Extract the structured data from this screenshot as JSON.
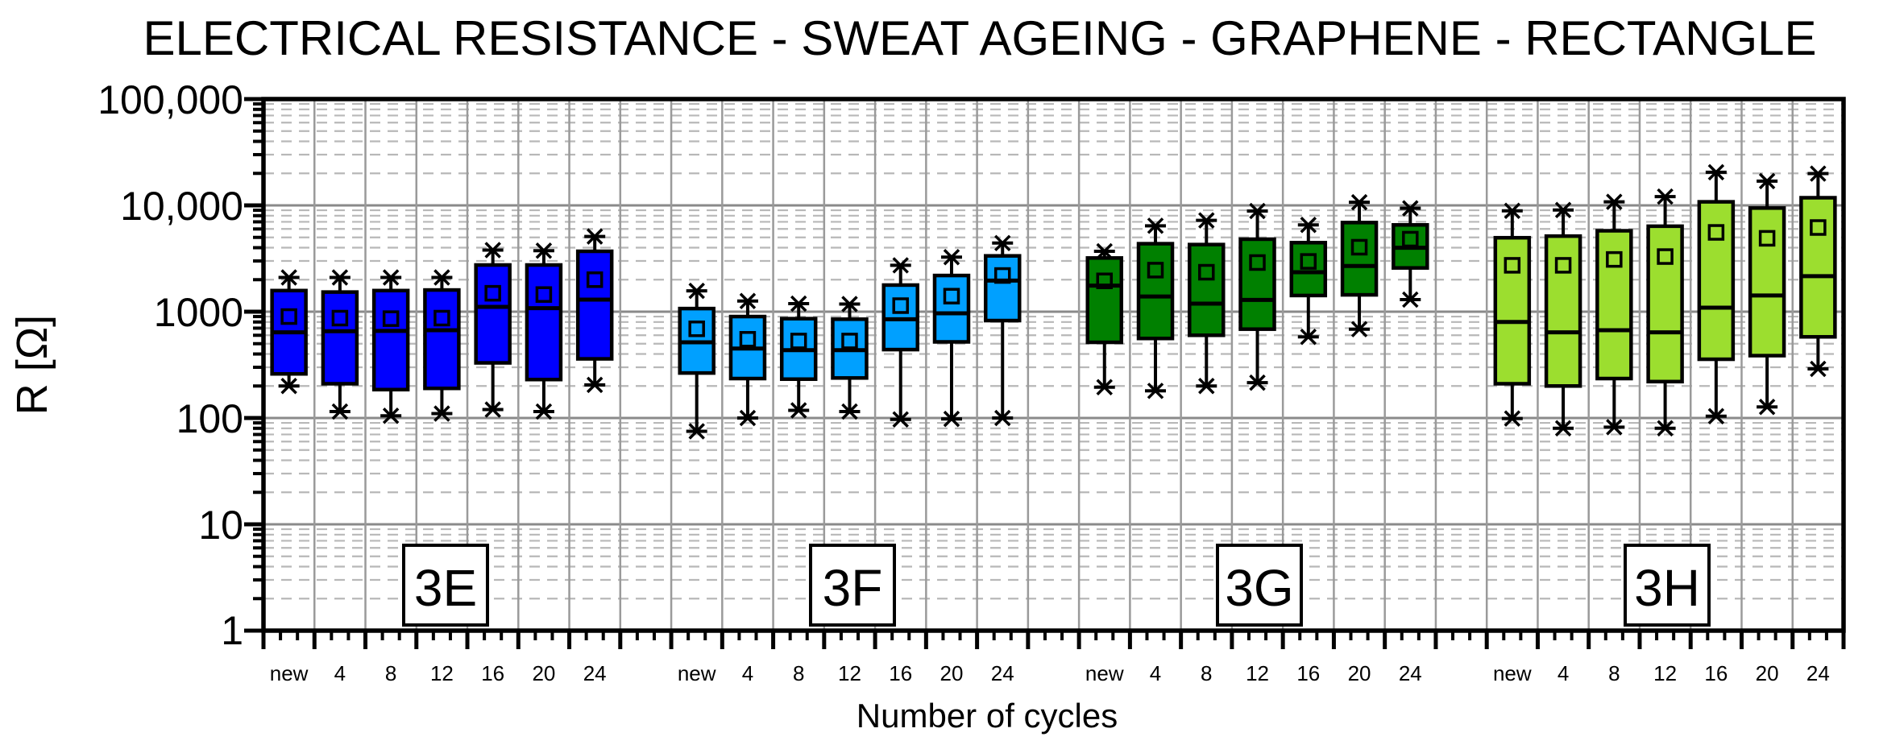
{
  "title": "ELECTRICAL RESISTANCE - SWEAT AGEING - GRAPHENE - RECTANGLE",
  "chart_data": {
    "type": "boxplot",
    "title": "ELECTRICAL RESISTANCE - SWEAT AGEING - GRAPHENE - RECTANGLE",
    "x_axis": {
      "label": "Number of cycles",
      "categories": [
        "new",
        "4",
        "8",
        "12",
        "16",
        "20",
        "24"
      ]
    },
    "y_axis": {
      "label": "R [Ω]",
      "scale": "log",
      "min": 1,
      "max": 100000,
      "tick_labels": [
        "100,000",
        "10,000",
        "1000",
        "100",
        "10",
        "1"
      ]
    },
    "grid": {
      "major_color": "#8a8a8a",
      "minor_color": "#b8b8b8",
      "vertical_color": "#9a9a9a"
    },
    "legend_position": "none",
    "groups": [
      {
        "name": "3E",
        "color": "#0000ff",
        "boxes": [
          {
            "label": "new",
            "low": 200,
            "q1": 260,
            "median": 640,
            "mean": 900,
            "q3": 1580,
            "high": 2100
          },
          {
            "label": "4",
            "low": 115,
            "q1": 210,
            "median": 655,
            "mean": 870,
            "q3": 1530,
            "high": 2100
          },
          {
            "label": "8",
            "low": 105,
            "q1": 185,
            "median": 660,
            "mean": 860,
            "q3": 1580,
            "high": 2100
          },
          {
            "label": "12",
            "low": 110,
            "q1": 190,
            "median": 670,
            "mean": 870,
            "q3": 1600,
            "high": 2100
          },
          {
            "label": "16",
            "low": 120,
            "q1": 330,
            "median": 1110,
            "mean": 1490,
            "q3": 2750,
            "high": 3800
          },
          {
            "label": "20",
            "low": 115,
            "q1": 230,
            "median": 1080,
            "mean": 1450,
            "q3": 2750,
            "high": 3750
          },
          {
            "label": "24",
            "low": 205,
            "q1": 360,
            "median": 1300,
            "mean": 2000,
            "q3": 3700,
            "high": 5100
          }
        ]
      },
      {
        "name": "3F",
        "color": "#00a0ff",
        "boxes": [
          {
            "label": "new",
            "low": 75,
            "q1": 265,
            "median": 515,
            "mean": 690,
            "q3": 1070,
            "high": 1570
          },
          {
            "label": "4",
            "low": 100,
            "q1": 235,
            "median": 450,
            "mean": 550,
            "q3": 900,
            "high": 1260
          },
          {
            "label": "8",
            "low": 118,
            "q1": 232,
            "median": 435,
            "mean": 530,
            "q3": 860,
            "high": 1190
          },
          {
            "label": "12",
            "low": 115,
            "q1": 238,
            "median": 435,
            "mean": 530,
            "q3": 850,
            "high": 1180
          },
          {
            "label": "16",
            "low": 97,
            "q1": 440,
            "median": 850,
            "mean": 1140,
            "q3": 1780,
            "high": 2730
          },
          {
            "label": "20",
            "low": 98,
            "q1": 520,
            "median": 965,
            "mean": 1400,
            "q3": 2190,
            "high": 3260
          },
          {
            "label": "24",
            "low": 100,
            "q1": 825,
            "median": 1960,
            "mean": 2190,
            "q3": 3350,
            "high": 4420
          }
        ]
      },
      {
        "name": "3G",
        "color": "#008000",
        "boxes": [
          {
            "label": "new",
            "low": 195,
            "q1": 515,
            "median": 1760,
            "mean": 1950,
            "q3": 3200,
            "high": 3700
          },
          {
            "label": "4",
            "low": 180,
            "q1": 560,
            "median": 1390,
            "mean": 2460,
            "q3": 4360,
            "high": 6430
          },
          {
            "label": "8",
            "low": 200,
            "q1": 600,
            "median": 1190,
            "mean": 2350,
            "q3": 4280,
            "high": 7220
          },
          {
            "label": "12",
            "low": 215,
            "q1": 685,
            "median": 1290,
            "mean": 2900,
            "q3": 4810,
            "high": 8850
          },
          {
            "label": "16",
            "low": 580,
            "q1": 1420,
            "median": 2350,
            "mean": 2970,
            "q3": 4460,
            "high": 6550
          },
          {
            "label": "20",
            "low": 685,
            "q1": 1440,
            "median": 2690,
            "mean": 4040,
            "q3": 6890,
            "high": 10700
          },
          {
            "label": "24",
            "low": 1300,
            "q1": 2580,
            "median": 3990,
            "mean": 4810,
            "q3": 6550,
            "high": 9380
          }
        ]
      },
      {
        "name": "3H",
        "color": "#9cde2f",
        "boxes": [
          {
            "label": "new",
            "low": 99,
            "q1": 210,
            "median": 800,
            "mean": 2730,
            "q3": 4960,
            "high": 8890
          },
          {
            "label": "4",
            "low": 80,
            "q1": 200,
            "median": 640,
            "mean": 2730,
            "q3": 5140,
            "high": 9050
          },
          {
            "label": "8",
            "low": 82,
            "q1": 235,
            "median": 670,
            "mean": 3100,
            "q3": 5770,
            "high": 10800
          },
          {
            "label": "12",
            "low": 80,
            "q1": 220,
            "median": 640,
            "mean": 3300,
            "q3": 6370,
            "high": 12100
          },
          {
            "label": "16",
            "low": 104,
            "q1": 357,
            "median": 1090,
            "mean": 5570,
            "q3": 10800,
            "high": 20500
          },
          {
            "label": "20",
            "low": 127,
            "q1": 386,
            "median": 1420,
            "mean": 4900,
            "q3": 9440,
            "high": 16900
          },
          {
            "label": "24",
            "low": 290,
            "q1": 580,
            "median": 2160,
            "mean": 6190,
            "q3": 11800,
            "high": 19900
          }
        ]
      }
    ]
  }
}
